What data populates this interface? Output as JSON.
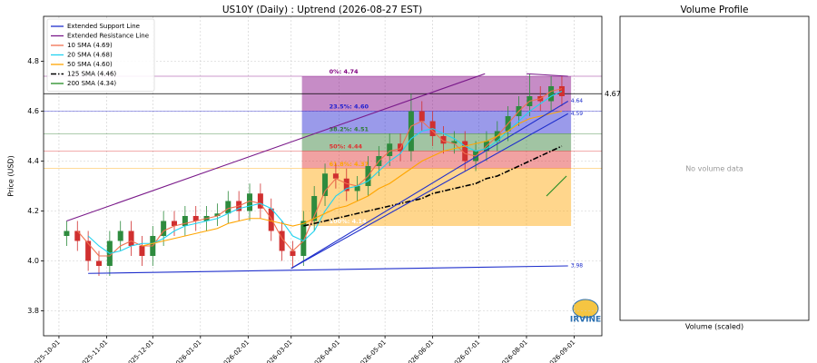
{
  "chart_data": {
    "type": "candlestick",
    "title": "US10Y (Daily) : Uptrend (2026-08-27 EST)",
    "y_label": "Price (USD)",
    "x": [
      "2025-10-06",
      "2025-10-13",
      "2025-10-20",
      "2025-10-27",
      "2025-11-03",
      "2025-11-10",
      "2025-11-17",
      "2025-11-24",
      "2025-12-01",
      "2025-12-08",
      "2025-12-15",
      "2025-12-22",
      "2025-12-29",
      "2026-01-05",
      "2026-01-12",
      "2026-01-19",
      "2026-01-26",
      "2026-02-02",
      "2026-02-09",
      "2026-02-16",
      "2026-02-23",
      "2026-03-02",
      "2026-03-09",
      "2026-03-16",
      "2026-03-23",
      "2026-03-30",
      "2026-04-06",
      "2026-04-13",
      "2026-04-20",
      "2026-04-27",
      "2026-05-04",
      "2026-05-11",
      "2026-05-18",
      "2026-05-25",
      "2026-06-01",
      "2026-06-08",
      "2026-06-15",
      "2026-06-22",
      "2026-06-29",
      "2026-07-06",
      "2026-07-13",
      "2026-07-20",
      "2026-07-27",
      "2026-08-03",
      "2026-08-10",
      "2026-08-17",
      "2026-08-24"
    ],
    "open": [
      4.1,
      4.12,
      4.08,
      4.0,
      3.98,
      4.08,
      4.12,
      4.06,
      4.02,
      4.1,
      4.16,
      4.14,
      4.18,
      4.16,
      4.18,
      4.19,
      4.24,
      4.2,
      4.27,
      4.21,
      4.12,
      4.04,
      4.02,
      4.16,
      4.26,
      4.35,
      4.33,
      4.28,
      4.3,
      4.38,
      4.42,
      4.47,
      4.44,
      4.6,
      4.56,
      4.5,
      4.47,
      4.48,
      4.4,
      4.44,
      4.48,
      4.52,
      4.58,
      4.62,
      4.66,
      4.64,
      4.7
    ],
    "high": [
      4.16,
      4.16,
      4.12,
      4.04,
      4.12,
      4.16,
      4.16,
      4.1,
      4.14,
      4.2,
      4.2,
      4.22,
      4.22,
      4.22,
      4.23,
      4.28,
      4.28,
      4.31,
      4.31,
      4.25,
      4.16,
      4.08,
      4.2,
      4.3,
      4.39,
      4.39,
      4.37,
      4.34,
      4.42,
      4.46,
      4.51,
      4.51,
      4.67,
      4.64,
      4.6,
      4.54,
      4.52,
      4.52,
      4.48,
      4.52,
      4.56,
      4.62,
      4.66,
      4.75,
      4.7,
      4.74,
      4.74
    ],
    "low": [
      4.06,
      4.04,
      3.96,
      3.94,
      3.94,
      4.04,
      4.02,
      3.98,
      3.98,
      4.06,
      4.1,
      4.1,
      4.12,
      4.12,
      4.14,
      4.15,
      4.16,
      4.16,
      4.17,
      4.08,
      4.0,
      3.97,
      3.98,
      4.12,
      4.22,
      4.29,
      4.24,
      4.24,
      4.26,
      4.34,
      4.38,
      4.4,
      4.4,
      4.52,
      4.46,
      4.43,
      4.43,
      4.36,
      4.36,
      4.4,
      4.44,
      4.48,
      4.54,
      4.58,
      4.6,
      4.6,
      4.62
    ],
    "close": [
      4.12,
      4.08,
      4.0,
      3.98,
      4.08,
      4.12,
      4.06,
      4.02,
      4.1,
      4.16,
      4.14,
      4.18,
      4.16,
      4.18,
      4.19,
      4.24,
      4.2,
      4.27,
      4.21,
      4.12,
      4.04,
      4.02,
      4.16,
      4.26,
      4.35,
      4.33,
      4.28,
      4.3,
      4.38,
      4.42,
      4.47,
      4.44,
      4.6,
      4.56,
      4.5,
      4.47,
      4.48,
      4.4,
      4.44,
      4.48,
      4.52,
      4.58,
      4.62,
      4.66,
      4.64,
      4.7,
      4.66
    ],
    "up_color": "#2e8b3e",
    "down_color": "#d03030",
    "xlim": [
      "2025-09-21",
      "2026-09-19"
    ],
    "ylim": [
      3.7,
      4.98
    ],
    "xticks": [
      "2025-10-01",
      "2025-11-01",
      "2025-12-01",
      "2026-01-01",
      "2026-02-01",
      "2026-03-01",
      "2026-04-01",
      "2026-05-01",
      "2026-06-01",
      "2026-07-01",
      "2026-08-01",
      "2026-09-01"
    ],
    "yticks": [
      3.8,
      {
        "value": 4,
        "label": "4.0"
      },
      4.2,
      4.4,
      4.6,
      4.8
    ],
    "grid": true,
    "legend": "upper left",
    "trendlines": [
      {
        "name": "Extended Support Line",
        "color": "#1f2fcc",
        "lines": [
          {
            "x": [
              "2025-10-20",
              "2026-08-28"
            ],
            "y": [
              3.95,
              3.98
            ],
            "label": "3.98"
          },
          {
            "x": [
              "2026-03-01",
              "2026-08-28"
            ],
            "y": [
              3.97,
              4.59
            ],
            "label": "4.59"
          },
          {
            "x": [
              "2026-03-01",
              "2026-08-28"
            ],
            "y": [
              3.97,
              4.64
            ],
            "label": "4.64"
          }
        ]
      },
      {
        "name": "Extended Resistance Line",
        "color": "#7a1a8a",
        "lines": [
          {
            "x": [
              "2025-10-06",
              "2026-07-05"
            ],
            "y": [
              4.16,
              4.75
            ]
          },
          {
            "x": [
              "2026-08-01",
              "2026-08-28"
            ],
            "y": [
              4.75,
              4.74
            ]
          }
        ]
      }
    ],
    "series": [
      {
        "name": "10 SMA (4.69)",
        "color": "#f07050",
        "values": [
          null,
          4.12,
          4.07,
          4.02,
          4.02,
          4.06,
          4.08,
          4.06,
          4.06,
          4.12,
          4.14,
          4.15,
          4.16,
          4.17,
          4.18,
          4.21,
          4.22,
          4.24,
          4.23,
          4.17,
          4.09,
          4.04,
          4.08,
          4.18,
          4.28,
          4.33,
          4.31,
          4.3,
          4.34,
          4.4,
          4.44,
          4.45,
          4.54,
          4.56,
          4.52,
          4.48,
          4.47,
          4.43,
          4.42,
          4.46,
          4.5,
          4.55,
          4.6,
          4.64,
          4.65,
          4.68,
          4.69
        ]
      },
      {
        "name": "20 SMA (4.68)",
        "color": "#22d3f0",
        "values": [
          null,
          null,
          4.1,
          4.06,
          4.03,
          4.04,
          4.06,
          4.07,
          4.07,
          4.09,
          4.12,
          4.14,
          4.15,
          4.16,
          4.17,
          4.19,
          4.21,
          4.22,
          4.23,
          4.21,
          4.16,
          4.1,
          4.08,
          4.12,
          4.2,
          4.26,
          4.29,
          4.3,
          4.32,
          4.36,
          4.4,
          4.43,
          4.49,
          4.52,
          4.53,
          4.51,
          4.49,
          4.46,
          4.44,
          4.45,
          4.48,
          4.52,
          4.56,
          4.6,
          4.63,
          4.66,
          4.68
        ]
      },
      {
        "name": "50 SMA (4.60)",
        "color": "#ffa500",
        "values": [
          null,
          null,
          null,
          null,
          null,
          null,
          null,
          4.06,
          4.07,
          4.08,
          4.09,
          4.1,
          4.11,
          4.12,
          4.13,
          4.15,
          4.16,
          4.17,
          4.17,
          4.16,
          4.15,
          4.14,
          4.15,
          4.17,
          4.19,
          4.21,
          4.22,
          4.24,
          4.26,
          4.29,
          4.31,
          4.34,
          4.37,
          4.4,
          4.42,
          4.44,
          4.45,
          4.46,
          4.47,
          4.48,
          4.5,
          4.52,
          4.55,
          4.57,
          4.58,
          4.59,
          4.6
        ]
      },
      {
        "name": "125 SMA (4.46)",
        "color": "#000000",
        "dash": "6 2 1.5 2",
        "values": [
          null,
          null,
          null,
          null,
          null,
          null,
          null,
          null,
          null,
          null,
          null,
          null,
          null,
          null,
          null,
          null,
          null,
          null,
          null,
          null,
          null,
          null,
          4.14,
          4.15,
          4.16,
          4.17,
          4.18,
          4.19,
          4.2,
          4.21,
          4.22,
          4.23,
          4.24,
          4.25,
          4.27,
          4.28,
          4.29,
          4.3,
          4.31,
          4.33,
          4.34,
          4.36,
          4.38,
          4.4,
          4.42,
          4.44,
          4.46
        ]
      },
      {
        "name": "200 SMA (4.34)",
        "color": "#228b22",
        "x": [
          "2026-08-14",
          "2026-08-27"
        ],
        "values": [
          4.26,
          4.34
        ]
      }
    ],
    "fib": {
      "x": [
        "2026-03-08",
        "2026-08-30"
      ],
      "levels": [
        {
          "value": 4.74,
          "label": "0%: 4.74",
          "color": "#800080"
        },
        {
          "value": 4.6,
          "label": "23.5%: 4.60",
          "color": "#2020d0"
        },
        {
          "value": 4.51,
          "label": "38.2%: 4.51",
          "color": "#2e7d32"
        },
        {
          "value": 4.44,
          "label": "50%: 4.44",
          "color": "#e03030"
        },
        {
          "value": 4.37,
          "label": "61.8%: 4.37",
          "color": "#ffa500"
        },
        {
          "value": 4.14,
          "label": "100%: 4.14",
          "color": "#a0522d"
        }
      ]
    },
    "hlines": [
      {
        "value": 4.67,
        "label": "4.67",
        "color": "#000000"
      }
    ],
    "volume_profile": {
      "title": "Volume Profile",
      "message": "No volume data",
      "x_label": "Volume (scaled)"
    },
    "logo": "IRVINE"
  }
}
